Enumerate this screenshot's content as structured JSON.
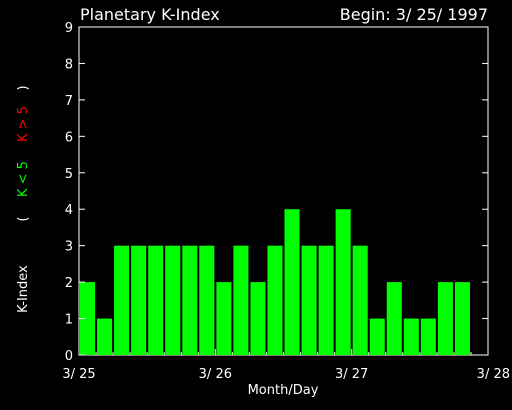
{
  "chart_data": {
    "type": "bar",
    "title": "Planetary K-Index",
    "subtitle": "Begin: 3/ 25/ 1997",
    "xlabel": "Month/Day",
    "ylabel_parts": [
      "K-Index",
      "(",
      "K < 5",
      "K > 5",
      ")"
    ],
    "ylim": [
      0,
      9
    ],
    "y_ticks": [
      "0",
      "1",
      "2",
      "3",
      "4",
      "5",
      "6",
      "7",
      "8",
      "9"
    ],
    "x_ticks": [
      "3/ 25",
      "3/ 26",
      "3/ 27",
      "3/ 28"
    ],
    "values": [
      2,
      1,
      3,
      3,
      3,
      3,
      3,
      3,
      2,
      3,
      2,
      3,
      4,
      3,
      3,
      4,
      3,
      1,
      2,
      1,
      1,
      2,
      2
    ],
    "colors": {
      "background": "#000000",
      "axes": "#ffffff",
      "low": "#00ff00",
      "high": "#ff0000"
    }
  }
}
